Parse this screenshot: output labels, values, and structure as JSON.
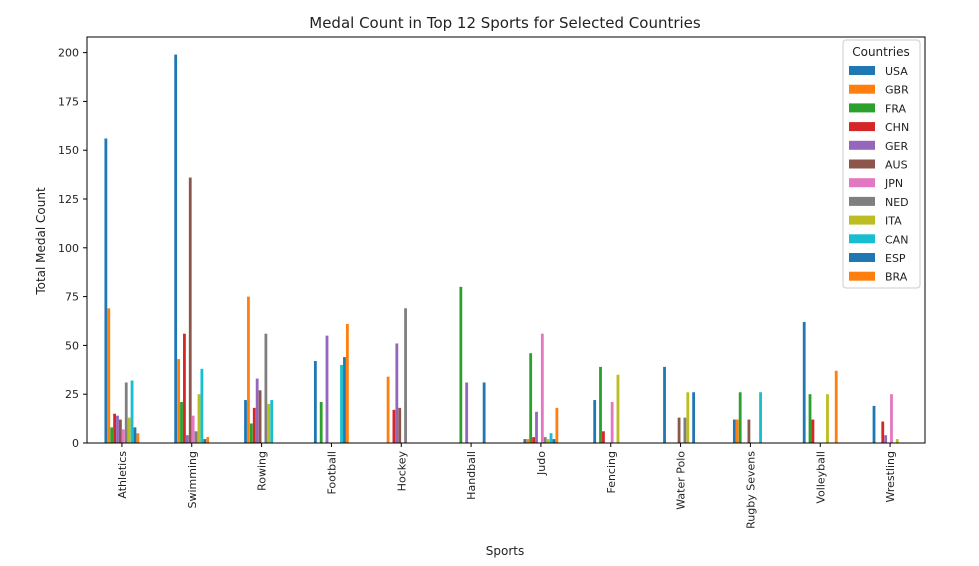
{
  "chart_data": {
    "type": "bar",
    "title": "Medal Count in Top 12 Sports for Selected Countries",
    "xlabel": "Sports",
    "ylabel": "Total Medal Count",
    "ylim": [
      0,
      208
    ],
    "yticks": [
      0,
      25,
      50,
      75,
      100,
      125,
      150,
      175,
      200
    ],
    "grid": false,
    "legend_title": "Countries",
    "legend_position": "top-right",
    "categories": [
      "Athletics",
      "Swimming",
      "Rowing",
      "Football",
      "Hockey",
      "Handball",
      "Judo",
      "Fencing",
      "Water Polo",
      "Rugby Sevens",
      "Volleyball",
      "Wrestling"
    ],
    "series": [
      {
        "name": "USA",
        "color": "#1f77b4",
        "values": [
          156,
          199,
          22,
          42,
          0,
          0,
          2,
          22,
          39,
          12,
          62,
          19
        ]
      },
      {
        "name": "GBR",
        "color": "#ff7f0e",
        "values": [
          69,
          43,
          75,
          0,
          34,
          0,
          2,
          0,
          0,
          12,
          0,
          0
        ]
      },
      {
        "name": "FRA",
        "color": "#2ca02c",
        "values": [
          8,
          21,
          10,
          21,
          0,
          80,
          46,
          39,
          0,
          26,
          25,
          0
        ]
      },
      {
        "name": "CHN",
        "color": "#d62728",
        "values": [
          15,
          56,
          18,
          0,
          17,
          0,
          3,
          6,
          0,
          0,
          12,
          11
        ]
      },
      {
        "name": "GER",
        "color": "#9467bd",
        "values": [
          14,
          4,
          33,
          55,
          51,
          31,
          16,
          0,
          0,
          0,
          0,
          4
        ]
      },
      {
        "name": "AUS",
        "color": "#8c564b",
        "values": [
          12,
          136,
          27,
          0,
          18,
          0,
          0,
          0,
          13,
          12,
          0,
          0
        ]
      },
      {
        "name": "JPN",
        "color": "#e377c2",
        "values": [
          7,
          14,
          0,
          0,
          0,
          0,
          56,
          21,
          0,
          0,
          0,
          25
        ]
      },
      {
        "name": "NED",
        "color": "#7f7f7f",
        "values": [
          31,
          6,
          56,
          0,
          69,
          0,
          3,
          0,
          13,
          0,
          0,
          0
        ]
      },
      {
        "name": "ITA",
        "color": "#bcbd22",
        "values": [
          13,
          25,
          20,
          0,
          0,
          0,
          2,
          35,
          26,
          0,
          25,
          2
        ]
      },
      {
        "name": "CAN",
        "color": "#17becf",
        "values": [
          32,
          38,
          22,
          40,
          0,
          0,
          5,
          0,
          0,
          26,
          0,
          0
        ]
      },
      {
        "name": "ESP",
        "color": "#1f77b4",
        "values": [
          8,
          2,
          0,
          44,
          0,
          31,
          2,
          0,
          26,
          0,
          0,
          0
        ]
      },
      {
        "name": "BRA",
        "color": "#ff7f0e",
        "values": [
          5,
          3,
          0,
          61,
          0,
          0,
          18,
          0,
          0,
          0,
          37,
          0
        ]
      }
    ]
  }
}
